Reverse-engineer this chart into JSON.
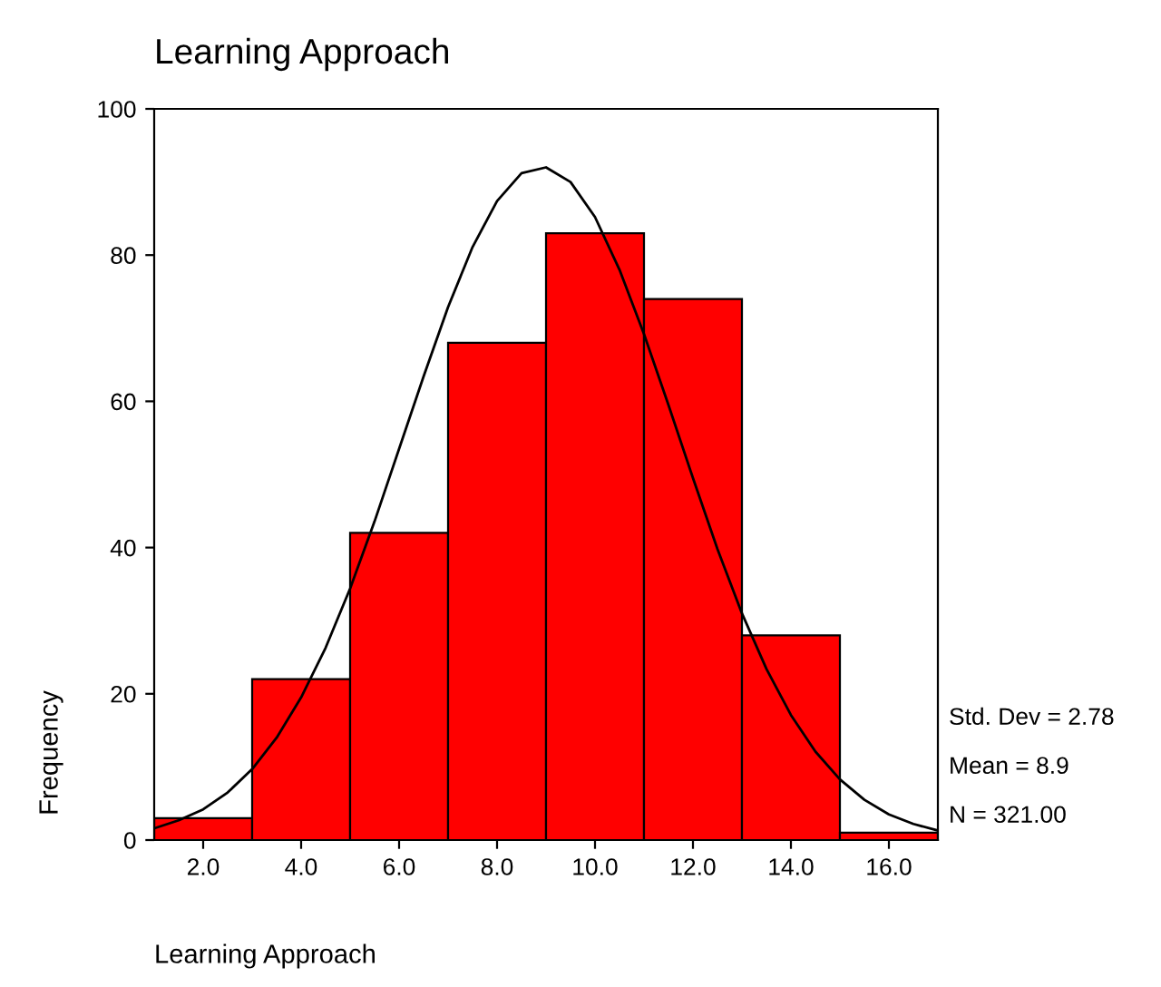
{
  "chart_data": {
    "type": "histogram",
    "title": "Learning Approach",
    "xlabel": "Learning Approach",
    "ylabel": "Frequency",
    "bins": [
      1,
      3,
      5,
      7,
      9,
      11,
      13,
      15,
      17
    ],
    "values": [
      3,
      22,
      42,
      68,
      83,
      74,
      28,
      1
    ],
    "color": "#ff0000",
    "series": [
      {
        "type": "line",
        "color": "#000000",
        "x": [
          1,
          1.5,
          2,
          2.5,
          3,
          3.5,
          4,
          4.5,
          5,
          5.5,
          6,
          6.5,
          7,
          7.5,
          8,
          8.5,
          9,
          9.5,
          10,
          10.5,
          11,
          11.5,
          12,
          12.5,
          13,
          13.5,
          14,
          14.5,
          15,
          15.5,
          16,
          16.5,
          17
        ],
        "values": [
          1.6,
          2.7,
          4.2,
          6.5,
          9.7,
          14,
          19.5,
          26.3,
          34.4,
          43.6,
          53.5,
          63.4,
          72.9,
          81.1,
          87.4,
          91.2,
          92,
          90,
          85.2,
          78,
          69.2,
          59.5,
          49.5,
          39.8,
          31,
          23.4,
          17.1,
          12.1,
          8.3,
          5.5,
          3.5,
          2.2,
          1.3
        ]
      }
    ],
    "annotations": [
      "Std. Dev = 2.78",
      "Mean = 8.9",
      "N = 321.00"
    ],
    "xlim": [
      1,
      17
    ],
    "xticks": [
      {
        "value": 2,
        "label": "2.0"
      },
      {
        "value": 4,
        "label": "4.0"
      },
      {
        "value": 6,
        "label": "6.0"
      },
      {
        "value": 8,
        "label": "8.0"
      },
      {
        "value": 10,
        "label": "10.0"
      },
      {
        "value": 12,
        "label": "12.0"
      },
      {
        "value": 14,
        "label": "14.0"
      },
      {
        "value": 16,
        "label": "16.0"
      }
    ],
    "ylim": [
      0,
      100
    ],
    "yticks": [
      0,
      20,
      40,
      60,
      80,
      100
    ],
    "grid": false,
    "legend": false
  }
}
